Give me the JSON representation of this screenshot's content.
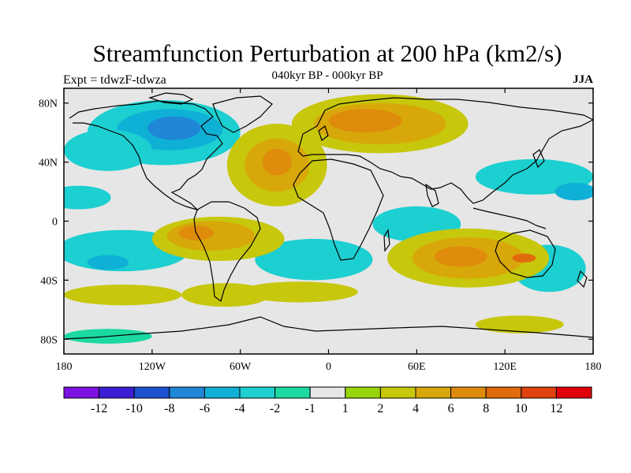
{
  "figure": {
    "title": "Streamfunction Perturbation at 200 hPa (km2/s)",
    "subtitle": "040kyr BP - 000kyr BP",
    "experiment_label": "Expt = tdwzF-tdwza",
    "season_label": "JJA"
  },
  "map": {
    "projection": "cylindrical-equidistant",
    "lon_range": [
      -180,
      180
    ],
    "lat_range": [
      -90,
      90
    ],
    "background_color": "#e6e6e6",
    "coastline_color": "#000000",
    "y_ticks": [
      {
        "lat": 80,
        "label": "80N"
      },
      {
        "lat": 40,
        "label": "40N"
      },
      {
        "lat": 0,
        "label": "0"
      },
      {
        "lat": -40,
        "label": "40S"
      },
      {
        "lat": -80,
        "label": "80S"
      }
    ],
    "x_ticks": [
      {
        "lon": -180,
        "label": "180"
      },
      {
        "lon": -120,
        "label": "120W"
      },
      {
        "lon": -60,
        "label": "60W"
      },
      {
        "lon": 0,
        "label": "0"
      },
      {
        "lon": 60,
        "label": "60E"
      },
      {
        "lon": 120,
        "label": "120E"
      },
      {
        "lon": 180,
        "label": "180"
      }
    ]
  },
  "colorbar": {
    "colors": [
      "#7b12e0",
      "#3b1fd4",
      "#1c50d0",
      "#1f86d8",
      "#0fb0d6",
      "#1ccfd0",
      "#1bd9a1",
      "#e6e6e6",
      "#99d50c",
      "#c7c70c",
      "#d8a80a",
      "#df8c0c",
      "#e06a0c",
      "#e0410d",
      "#e0000b"
    ],
    "labels": [
      "-12",
      "-10",
      "-8",
      "-6",
      "-4",
      "-2",
      "-1",
      "1",
      "2",
      "4",
      "6",
      "8",
      "10",
      "12"
    ]
  },
  "anomalies": [
    {
      "name": "north-america-negative-outer",
      "lon": -112,
      "lat": 60,
      "rx": 52,
      "ry": 22,
      "level": "-2"
    },
    {
      "name": "north-america-negative-mid",
      "lon": -108,
      "lat": 62,
      "rx": 36,
      "ry": 14,
      "level": "-4"
    },
    {
      "name": "north-america-negative-core",
      "lon": -105,
      "lat": 63,
      "rx": 18,
      "ry": 8,
      "level": "-6"
    },
    {
      "name": "north-pacific-negative-band",
      "lon": -150,
      "lat": 48,
      "rx": 30,
      "ry": 14,
      "level": "-2"
    },
    {
      "name": "east-pacific-negative",
      "lon": -170,
      "lat": 16,
      "rx": 22,
      "ry": 8,
      "level": "-2"
    },
    {
      "name": "south-pacific-negative",
      "lon": -140,
      "lat": -20,
      "rx": 45,
      "ry": 14,
      "level": "-2"
    },
    {
      "name": "south-pacific-negative-core",
      "lon": -150,
      "lat": -28,
      "rx": 14,
      "ry": 5,
      "level": "-4"
    },
    {
      "name": "south-atlantic-negative",
      "lon": -10,
      "lat": -26,
      "rx": 40,
      "ry": 14,
      "level": "-2"
    },
    {
      "name": "indian-ocean-negative",
      "lon": 60,
      "lat": -2,
      "rx": 30,
      "ry": 12,
      "level": "-2"
    },
    {
      "name": "east-asia-negative",
      "lon": 140,
      "lat": 30,
      "rx": 40,
      "ry": 12,
      "level": "-2"
    },
    {
      "name": "west-pacific-negative",
      "lon": 168,
      "lat": 20,
      "rx": 14,
      "ry": 6,
      "level": "-4"
    },
    {
      "name": "australia-south-negative",
      "lon": 150,
      "lat": -32,
      "rx": 25,
      "ry": 16,
      "level": "-2"
    },
    {
      "name": "atlantic-positive-outer",
      "lon": -35,
      "lat": 38,
      "rx": 34,
      "ry": 28,
      "level": "2"
    },
    {
      "name": "atlantic-positive-mid",
      "lon": -35,
      "lat": 38,
      "rx": 22,
      "ry": 18,
      "level": "4"
    },
    {
      "name": "atlantic-positive-core",
      "lon": -35,
      "lat": 40,
      "rx": 10,
      "ry": 9,
      "level": "6"
    },
    {
      "name": "north-eurasia-positive-outer",
      "lon": 35,
      "lat": 66,
      "rx": 60,
      "ry": 20,
      "level": "2"
    },
    {
      "name": "north-eurasia-positive-mid",
      "lon": 35,
      "lat": 66,
      "rx": 45,
      "ry": 14,
      "level": "4"
    },
    {
      "name": "north-eurasia-positive-core",
      "lon": 25,
      "lat": 68,
      "rx": 25,
      "ry": 8,
      "level": "6"
    },
    {
      "name": "tropical-atlantic-positive-outer",
      "lon": -75,
      "lat": -12,
      "rx": 45,
      "ry": 15,
      "level": "2"
    },
    {
      "name": "tropical-atlantic-positive-mid",
      "lon": -80,
      "lat": -10,
      "rx": 30,
      "ry": 10,
      "level": "4"
    },
    {
      "name": "tropical-atlantic-positive-core",
      "lon": -90,
      "lat": -8,
      "rx": 12,
      "ry": 5,
      "level": "6"
    },
    {
      "name": "south-indian-positive-outer",
      "lon": 95,
      "lat": -25,
      "rx": 55,
      "ry": 20,
      "level": "2"
    },
    {
      "name": "south-indian-positive-mid",
      "lon": 95,
      "lat": -25,
      "rx": 38,
      "ry": 14,
      "level": "4"
    },
    {
      "name": "south-indian-positive-core",
      "lon": 90,
      "lat": -24,
      "rx": 18,
      "ry": 7,
      "level": "6"
    },
    {
      "name": "australia-positive-core",
      "lon": 133,
      "lat": -25,
      "rx": 8,
      "ry": 3,
      "level": "8"
    },
    {
      "name": "south-positive-band",
      "lon": -150,
      "lat": -78,
      "rx": 30,
      "ry": 5,
      "level": "-1"
    },
    {
      "name": "southern-ocean-positive",
      "lon": -70,
      "lat": -50,
      "rx": 30,
      "ry": 8,
      "level": "2"
    },
    {
      "name": "south-america-positive",
      "lon": -20,
      "lat": -48,
      "rx": 40,
      "ry": 7,
      "level": "2"
    },
    {
      "name": "south-pacific-positive",
      "lon": -140,
      "lat": -50,
      "rx": 40,
      "ry": 7,
      "level": "2"
    },
    {
      "name": "south-africa-positive",
      "lon": 130,
      "lat": -70,
      "rx": 30,
      "ry": 6,
      "level": "2"
    }
  ]
}
